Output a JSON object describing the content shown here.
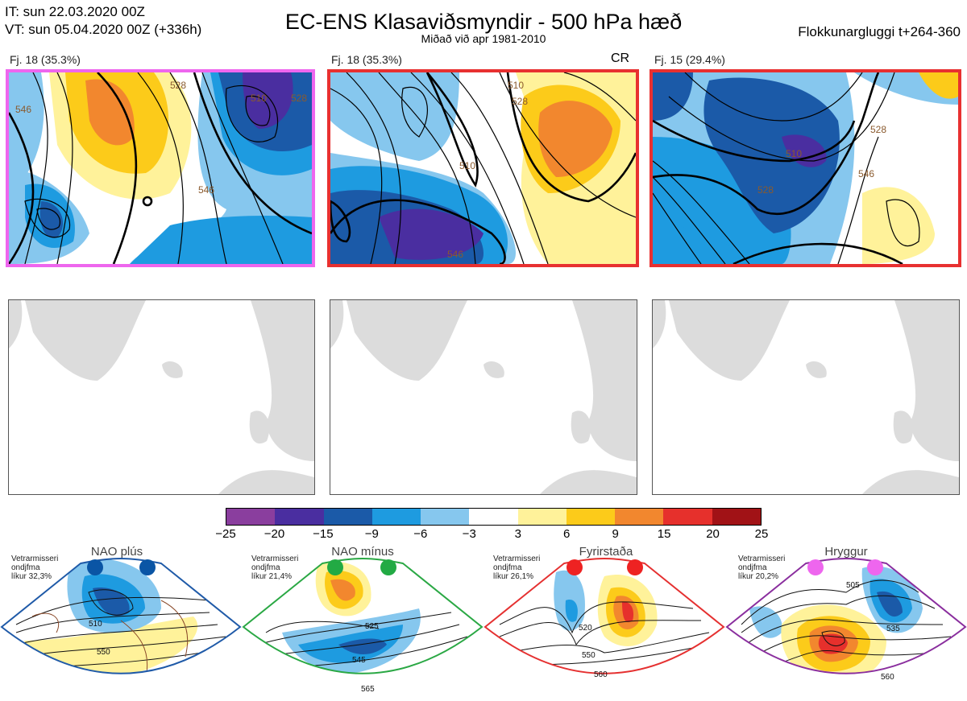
{
  "header": {
    "it_line": "IT: sun 22.03.2020 00Z",
    "vt_line": "VT: sun 05.04.2020 00Z  (+336h)",
    "title": "EC-ENS Klasaviðsmyndir - 500 hPa hæð",
    "subtitle": "Miðað við apr 1981-2010",
    "window": "Flokkunargluggi t+264-360"
  },
  "panels": [
    {
      "label": "Fj. 18 (35.3%)",
      "tag": "",
      "border_color": "#ee66ee",
      "contours": [
        "546",
        "528",
        "546",
        "546",
        "510",
        "528",
        "546"
      ]
    },
    {
      "label": "Fj. 18 (35.3%)",
      "tag": "CR",
      "border_color": "#e83030",
      "contours": [
        "510",
        "528",
        "510",
        "528",
        "546",
        "54"
      ]
    },
    {
      "label": "Fj. 15 (29.4%)",
      "tag": "",
      "border_color": "#e83030",
      "contours": [
        "510",
        "528",
        "546",
        "528",
        "546",
        "564"
      ]
    }
  ],
  "colorbar": {
    "ticks": [
      "−25",
      "−20",
      "−15",
      "−9",
      "−6",
      "−3",
      "3",
      "6",
      "9",
      "15",
      "20",
      "25"
    ],
    "colors": [
      "#8a3e9e",
      "#4a2ea0",
      "#1b5aa8",
      "#1e9be0",
      "#86c7ee",
      "#ffffff",
      "#fff29a",
      "#fccb1a",
      "#f2872e",
      "#e6302c",
      "#a11216"
    ]
  },
  "regimes": [
    {
      "title": "NAO plús",
      "note_line1": "Vetrarmisseri",
      "note_line2": "ondjfma",
      "note_line3": "líkur 32,3%",
      "dot_color": "#0a55a5",
      "frame_color": "#1f5aa8",
      "contours": [
        "510",
        "550"
      ]
    },
    {
      "title": "NAO mínus",
      "note_line1": "Vetrarmisseri",
      "note_line2": "ondjfma",
      "note_line3": "líkur 21,4%",
      "dot_color": "#22aa44",
      "frame_color": "#2aa844",
      "contours": [
        "525",
        "545",
        "565"
      ]
    },
    {
      "title": "Fyrirstaða",
      "note_line1": "Vetrarmisseri",
      "note_line2": "ondjfma",
      "note_line3": "líkur 26,1%",
      "dot_color": "#ee2222",
      "frame_color": "#e53030",
      "contours": [
        "520",
        "550",
        "560"
      ]
    },
    {
      "title": "Hryggur",
      "note_line1": "Vetrarmisseri",
      "note_line2": "ondjfma",
      "note_line3": "líkur 20,2%",
      "dot_color": "#ee66ee",
      "frame_color": "#8a2e9e",
      "contours": [
        "505",
        "535",
        "560"
      ]
    }
  ]
}
